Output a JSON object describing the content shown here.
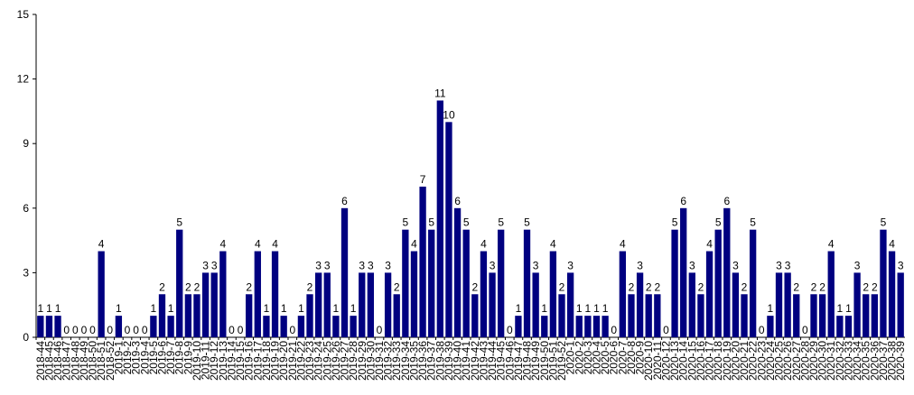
{
  "chart_data": {
    "type": "bar",
    "color": "#000080",
    "categories": [
      "2018-44",
      "2018-45",
      "2018-46",
      "2018-47",
      "2018-48",
      "2018-49",
      "2018-50",
      "2018-51",
      "2018-52",
      "2019-1",
      "2019-2",
      "2019-3",
      "2019-4",
      "2019-5",
      "2019-6",
      "2019-7",
      "2019-8",
      "2019-9",
      "2019-10",
      "2019-11",
      "2019-12",
      "2019-13",
      "2019-14",
      "2019-15",
      "2019-16",
      "2019-17",
      "2019-18",
      "2019-19",
      "2019-20",
      "2019-21",
      "2019-22",
      "2019-23",
      "2019-24",
      "2019-25",
      "2019-26",
      "2019-27",
      "2019-28",
      "2019-29",
      "2019-30",
      "2019-31",
      "2019-32",
      "2019-33",
      "2019-34",
      "2019-35",
      "2019-36",
      "2019-37",
      "2019-38",
      "2019-39",
      "2019-40",
      "2019-41",
      "2019-42",
      "2019-43",
      "2019-44",
      "2019-45",
      "2019-46",
      "2019-47",
      "2019-48",
      "2019-49",
      "2019-50",
      "2019-51",
      "2019-52",
      "2020-1",
      "2020-2",
      "2020-3",
      "2020-4",
      "2020-5",
      "2020-6",
      "2020-7",
      "2020-8",
      "2020-9",
      "2020-10",
      "2020-11",
      "2020-12",
      "2020-13",
      "2020-14",
      "2020-15",
      "2020-16",
      "2020-17",
      "2020-18",
      "2020-19",
      "2020-20",
      "2020-21",
      "2020-22",
      "2020-23",
      "2020-24",
      "2020-25",
      "2020-26",
      "2020-27",
      "2020-28",
      "2020-29",
      "2020-30",
      "2020-31",
      "2020-32",
      "2020-33",
      "2020-34",
      "2020-35",
      "2020-36",
      "2020-37",
      "2020-38",
      "2020-39"
    ],
    "values": [
      1,
      1,
      1,
      0,
      0,
      0,
      0,
      4,
      0,
      1,
      0,
      0,
      0,
      1,
      2,
      1,
      5,
      2,
      2,
      3,
      3,
      4,
      0,
      0,
      2,
      4,
      1,
      4,
      1,
      0,
      1,
      2,
      3,
      3,
      1,
      6,
      1,
      3,
      3,
      0,
      3,
      2,
      5,
      4,
      7,
      5,
      11,
      10,
      6,
      5,
      2,
      4,
      3,
      5,
      0,
      1,
      5,
      3,
      1,
      4,
      2,
      3,
      1,
      1,
      1,
      1,
      0,
      4,
      2,
      3,
      2,
      2,
      0,
      5,
      6,
      3,
      2,
      4,
      5,
      6,
      3,
      2,
      5,
      0,
      1,
      3,
      3,
      2,
      0,
      2,
      2,
      4,
      1,
      1,
      3,
      2,
      2,
      5,
      4,
      3
    ],
    "ylim": [
      0,
      15
    ],
    "yticks": [
      0,
      3,
      6,
      9,
      12,
      15
    ],
    "grid": false
  }
}
